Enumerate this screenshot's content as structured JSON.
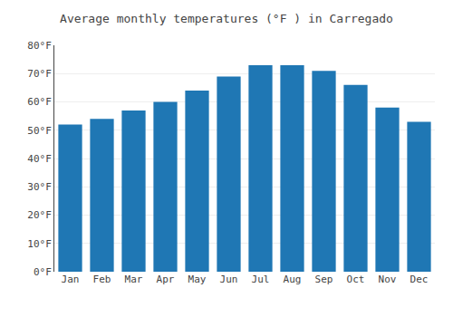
{
  "chart_data": {
    "type": "bar",
    "title": "Average monthly temperatures (°F ) in Carregado",
    "categories": [
      "Jan",
      "Feb",
      "Mar",
      "Apr",
      "May",
      "Jun",
      "Jul",
      "Aug",
      "Sep",
      "Oct",
      "Nov",
      "Dec"
    ],
    "values": [
      52,
      54,
      57,
      60,
      64,
      69,
      73,
      73,
      71,
      66,
      58,
      53
    ],
    "ylim": [
      0,
      80
    ],
    "yticks": [
      {
        "value": 0,
        "label": "0°F"
      },
      {
        "value": 10,
        "label": "10°F"
      },
      {
        "value": 20,
        "label": "20°F"
      },
      {
        "value": 30,
        "label": "30°F"
      },
      {
        "value": 40,
        "label": "40°F"
      },
      {
        "value": 50,
        "label": "50°F"
      },
      {
        "value": 60,
        "label": "60°F"
      },
      {
        "value": 70,
        "label": "70°F"
      },
      {
        "value": 80,
        "label": "80°F"
      }
    ],
    "grid": true
  }
}
